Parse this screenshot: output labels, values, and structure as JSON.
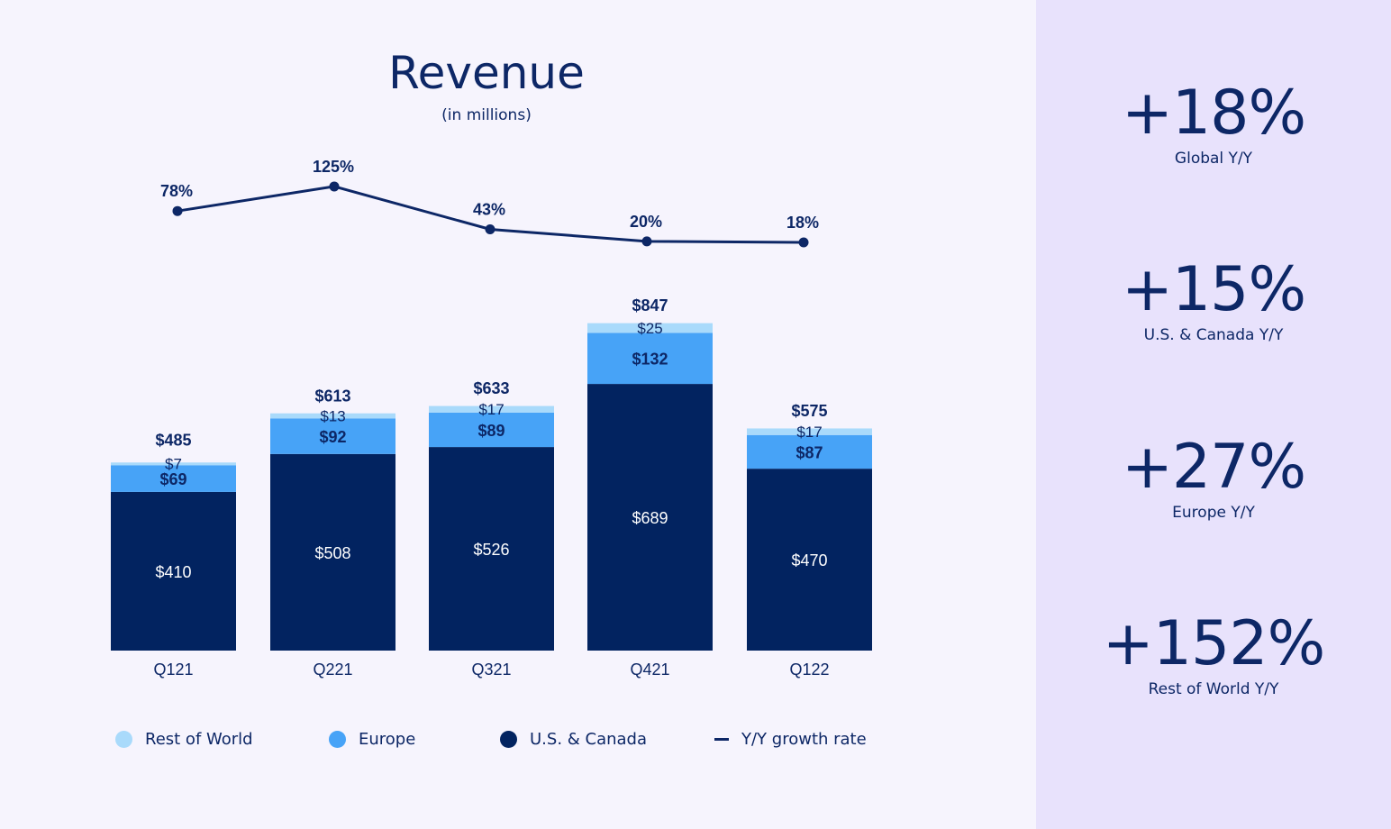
{
  "colors": {
    "us": "#022360",
    "europe": "#47a3f7",
    "row": "#a9dafb",
    "line": "#0d2766",
    "text": "#0d2766"
  },
  "chart_data": {
    "type": "bar",
    "stacked": true,
    "title": "Revenue",
    "subtitle": "(in millions)",
    "categories": [
      "Q121",
      "Q221",
      "Q321",
      "Q421",
      "Q122"
    ],
    "series": [
      {
        "name": "U.S. & Canada",
        "values": [
          410,
          508,
          526,
          689,
          470
        ],
        "labels": [
          "$410",
          "$508",
          "$526",
          "$689",
          "$470"
        ]
      },
      {
        "name": "Europe",
        "values": [
          69,
          92,
          89,
          132,
          87
        ],
        "labels": [
          "$69",
          "$92",
          "$89",
          "$132",
          "$87"
        ]
      },
      {
        "name": "Rest of World",
        "values": [
          7,
          13,
          17,
          25,
          17
        ],
        "labels": [
          "$7",
          "$13",
          "$17",
          "$25",
          "$17"
        ]
      }
    ],
    "totals": [
      485,
      613,
      633,
      847,
      575
    ],
    "total_labels": [
      "$485",
      "$613",
      "$633",
      "$847",
      "$575"
    ],
    "growth": {
      "name": "Y/Y growth rate",
      "type": "line",
      "values": [
        78,
        125,
        43,
        20,
        18
      ],
      "labels": [
        "78%",
        "125%",
        "43%",
        "20%",
        "18%"
      ]
    }
  },
  "legend": [
    {
      "label": "Rest of World"
    },
    {
      "label": "Europe"
    },
    {
      "label": "U.S. & Canada"
    },
    {
      "label": "Y/Y growth rate"
    }
  ],
  "stats": [
    {
      "value": "+18%",
      "label": "Global Y/Y"
    },
    {
      "value": "+15%",
      "label": "U.S. & Canada Y/Y"
    },
    {
      "value": "+27%",
      "label": "Europe Y/Y"
    },
    {
      "value": "+152%",
      "label": "Rest of World Y/Y"
    }
  ]
}
